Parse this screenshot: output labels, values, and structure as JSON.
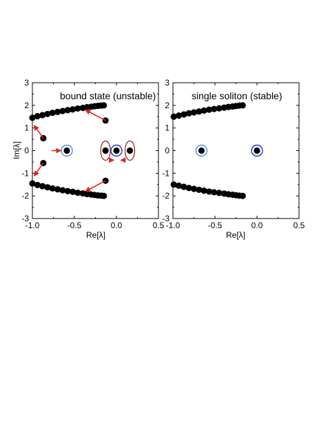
{
  "chart_data": [
    {
      "type": "scatter",
      "title": "bound state (unstable)",
      "xlabel": "Re[λ]",
      "ylabel": "Im[λ]",
      "xlim": [
        -1.0,
        0.5
      ],
      "ylim": [
        -3,
        3
      ],
      "xticks": [
        "-1.0",
        "-0.5",
        "0.0",
        "0.5"
      ],
      "yticks": [
        "-3",
        "-2",
        "-1",
        "0",
        "1",
        "2",
        "3"
      ],
      "grid": false,
      "colors": {
        "points": "#000000",
        "arrows": "#e8221b",
        "ellipses": "#8b1a1a",
        "circle_light": "#4a90d9",
        "circle_dark": "#1f2fbf"
      },
      "series": [
        {
          "points": [
            {
              "x": -1.0,
              "y": 1.45
            },
            {
              "x": -0.94,
              "y": 1.52
            },
            {
              "x": -0.88,
              "y": 1.57
            },
            {
              "x": -0.82,
              "y": 1.62
            },
            {
              "x": -0.76,
              "y": 1.67
            },
            {
              "x": -0.7,
              "y": 1.71
            },
            {
              "x": -0.64,
              "y": 1.75
            },
            {
              "x": -0.58,
              "y": 1.79
            },
            {
              "x": -0.52,
              "y": 1.82
            },
            {
              "x": -0.46,
              "y": 1.86
            },
            {
              "x": -0.4,
              "y": 1.89
            },
            {
              "x": -0.35,
              "y": 1.92
            },
            {
              "x": -0.3,
              "y": 1.94
            },
            {
              "x": -0.26,
              "y": 1.96
            },
            {
              "x": -0.22,
              "y": 1.98
            },
            {
              "x": -0.18,
              "y": 1.99
            },
            {
              "x": -0.15,
              "y": 2.0
            },
            {
              "x": -0.13,
              "y": 1.33
            },
            {
              "x": -0.87,
              "y": 0.55
            },
            {
              "x": -1.0,
              "y": -1.45
            },
            {
              "x": -0.94,
              "y": -1.52
            },
            {
              "x": -0.88,
              "y": -1.57
            },
            {
              "x": -0.82,
              "y": -1.62
            },
            {
              "x": -0.76,
              "y": -1.67
            },
            {
              "x": -0.7,
              "y": -1.71
            },
            {
              "x": -0.64,
              "y": -1.75
            },
            {
              "x": -0.58,
              "y": -1.79
            },
            {
              "x": -0.52,
              "y": -1.82
            },
            {
              "x": -0.46,
              "y": -1.86
            },
            {
              "x": -0.4,
              "y": -1.89
            },
            {
              "x": -0.35,
              "y": -1.92
            },
            {
              "x": -0.3,
              "y": -1.94
            },
            {
              "x": -0.26,
              "y": -1.96
            },
            {
              "x": -0.22,
              "y": -1.98
            },
            {
              "x": -0.18,
              "y": -1.99
            },
            {
              "x": -0.15,
              "y": -2.0
            },
            {
              "x": -0.13,
              "y": -1.33
            },
            {
              "x": -0.87,
              "y": -0.55
            },
            {
              "x": -0.59,
              "y": 0.0
            },
            {
              "x": -0.13,
              "y": 0.0
            },
            {
              "x": 0.0,
              "y": 0.0
            },
            {
              "x": 0.16,
              "y": 0.0
            }
          ]
        }
      ],
      "circles": [
        {
          "x": -0.59,
          "y": 0.0,
          "color": "circle_light"
        },
        {
          "x": 0.0,
          "y": 0.0,
          "color": "circle_dark"
        }
      ],
      "ellipses": [
        {
          "x": -0.13,
          "y": 0.0
        },
        {
          "x": 0.16,
          "y": 0.0
        }
      ],
      "arrows": [
        {
          "from": [
            -0.13,
            1.33
          ],
          "to": [
            -0.37,
            1.8
          ]
        },
        {
          "from": [
            -0.13,
            -1.33
          ],
          "to": [
            -0.37,
            -1.8
          ]
        },
        {
          "from": [
            -0.87,
            0.55
          ],
          "to": [
            -0.98,
            1.12
          ]
        },
        {
          "from": [
            -0.87,
            -0.55
          ],
          "to": [
            -0.98,
            -1.12
          ]
        },
        {
          "from": [
            -0.77,
            0.0
          ],
          "to": [
            -0.66,
            0.0
          ]
        },
        {
          "from": [
            -0.07,
            -0.42
          ],
          "to": [
            -0.03,
            -0.42
          ]
        },
        {
          "from": [
            0.11,
            -0.42
          ],
          "to": [
            0.05,
            -0.42
          ]
        }
      ]
    },
    {
      "type": "scatter",
      "title": "single soliton (stable)",
      "xlabel": "Re[λ]",
      "ylabel": "",
      "xlim": [
        -1.0,
        0.5
      ],
      "ylim": [
        -3,
        3
      ],
      "xticks": [
        "-1.0",
        "-0.5",
        "0.0",
        "0.5"
      ],
      "yticks": [
        "-3",
        "-2",
        "-1",
        "0",
        "1",
        "2",
        "3"
      ],
      "grid": false,
      "colors": {
        "points": "#000000",
        "circle_light": "#4a90d9",
        "circle_dark": "#1f2fbf"
      },
      "series": [
        {
          "points": [
            {
              "x": -0.99,
              "y": 1.5
            },
            {
              "x": -0.93,
              "y": 1.55
            },
            {
              "x": -0.87,
              "y": 1.6
            },
            {
              "x": -0.81,
              "y": 1.65
            },
            {
              "x": -0.75,
              "y": 1.69
            },
            {
              "x": -0.69,
              "y": 1.73
            },
            {
              "x": -0.63,
              "y": 1.77
            },
            {
              "x": -0.57,
              "y": 1.81
            },
            {
              "x": -0.51,
              "y": 1.84
            },
            {
              "x": -0.45,
              "y": 1.87
            },
            {
              "x": -0.39,
              "y": 1.9
            },
            {
              "x": -0.34,
              "y": 1.93
            },
            {
              "x": -0.29,
              "y": 1.95
            },
            {
              "x": -0.25,
              "y": 1.97
            },
            {
              "x": -0.21,
              "y": 1.99
            },
            {
              "x": -0.17,
              "y": 2.0
            },
            {
              "x": -0.99,
              "y": -1.5
            },
            {
              "x": -0.93,
              "y": -1.55
            },
            {
              "x": -0.87,
              "y": -1.6
            },
            {
              "x": -0.81,
              "y": -1.65
            },
            {
              "x": -0.75,
              "y": -1.69
            },
            {
              "x": -0.69,
              "y": -1.73
            },
            {
              "x": -0.63,
              "y": -1.77
            },
            {
              "x": -0.57,
              "y": -1.81
            },
            {
              "x": -0.51,
              "y": -1.84
            },
            {
              "x": -0.45,
              "y": -1.87
            },
            {
              "x": -0.39,
              "y": -1.9
            },
            {
              "x": -0.34,
              "y": -1.93
            },
            {
              "x": -0.29,
              "y": -1.95
            },
            {
              "x": -0.25,
              "y": -1.97
            },
            {
              "x": -0.21,
              "y": -1.99
            },
            {
              "x": -0.17,
              "y": -2.0
            },
            {
              "x": -0.66,
              "y": 0.0
            },
            {
              "x": 0.0,
              "y": 0.0
            }
          ]
        }
      ],
      "circles": [
        {
          "x": -0.66,
          "y": 0.0,
          "color": "circle_light"
        },
        {
          "x": 0.0,
          "y": 0.0,
          "color": "circle_dark"
        }
      ],
      "ellipses": [],
      "arrows": []
    }
  ]
}
